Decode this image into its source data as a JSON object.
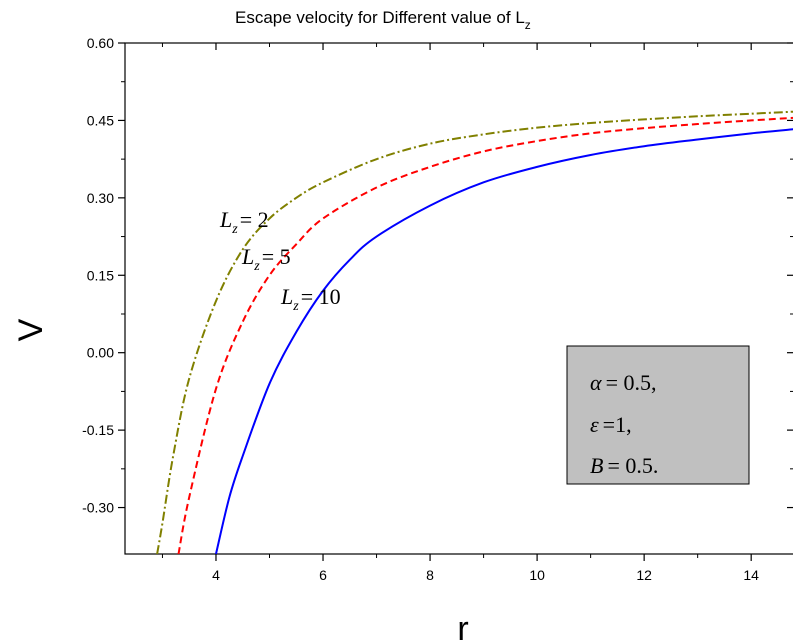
{
  "chart_data": {
    "type": "line",
    "title": {
      "main": "Escape velocity for Different value of L",
      "sub": "z"
    },
    "xlabel": "r",
    "ylabel": "V",
    "xlim": [
      2.3,
      14.8
    ],
    "ylim": [
      -0.39,
      0.6
    ],
    "x_ticks": [
      4,
      6,
      8,
      10,
      12,
      14
    ],
    "x_tick_labels": [
      "4",
      "6",
      "8",
      "10",
      "12",
      "14"
    ],
    "y_ticks": [
      -0.3,
      -0.15,
      0.0,
      0.15,
      0.3,
      0.45,
      0.6
    ],
    "y_tick_labels": [
      "-0.30",
      "-0.15",
      "0.00",
      "0.15",
      "0.30",
      "0.45",
      "0.60"
    ],
    "grid": false,
    "series": [
      {
        "label": {
          "var": "L",
          "sub": "z",
          "rest": "= 2"
        },
        "color": "#808000",
        "dash": "dashdot",
        "x": [
          2.9,
          3.0,
          3.2,
          3.5,
          4.0,
          4.5,
          5.0,
          5.5,
          6.0,
          7.0,
          8.0,
          9.0,
          10.0,
          11.0,
          12.0,
          13.0,
          14.0,
          14.8
        ],
        "y": [
          -0.39,
          -0.33,
          -0.2,
          -0.05,
          0.1,
          0.2,
          0.26,
          0.3,
          0.33,
          0.375,
          0.405,
          0.423,
          0.436,
          0.445,
          0.452,
          0.458,
          0.463,
          0.467
        ]
      },
      {
        "label": {
          "var": "L",
          "sub": "z",
          "rest": "= 5"
        },
        "color": "#ff0000",
        "dash": "dashed",
        "x": [
          3.3,
          3.5,
          4.0,
          4.5,
          5.0,
          5.5,
          6.0,
          7.0,
          8.0,
          9.0,
          10.0,
          11.0,
          12.0,
          13.0,
          14.0,
          14.8
        ],
        "y": [
          -0.39,
          -0.28,
          -0.07,
          0.06,
          0.15,
          0.21,
          0.26,
          0.32,
          0.36,
          0.39,
          0.41,
          0.425,
          0.435,
          0.443,
          0.45,
          0.455
        ]
      },
      {
        "label": {
          "var": "L",
          "sub": "z",
          "rest": "= 10"
        },
        "color": "#0000ff",
        "dash": "solid",
        "x": [
          4.0,
          4.25,
          4.5,
          5.0,
          5.5,
          6.0,
          6.5,
          7.0,
          8.0,
          9.0,
          10.0,
          11.0,
          12.0,
          13.0,
          14.0,
          14.8
        ],
        "y": [
          -0.39,
          -0.28,
          -0.2,
          -0.06,
          0.04,
          0.12,
          0.18,
          0.225,
          0.285,
          0.33,
          0.36,
          0.383,
          0.4,
          0.413,
          0.425,
          0.433
        ]
      }
    ],
    "annotation_box": {
      "background": "#c0c0c0",
      "lines": [
        {
          "sym": "α",
          "rest": "= 0.5,"
        },
        {
          "sym": "ε",
          "rest": "=1,"
        },
        {
          "sym": "B",
          "rest": "= 0.5."
        }
      ]
    }
  }
}
